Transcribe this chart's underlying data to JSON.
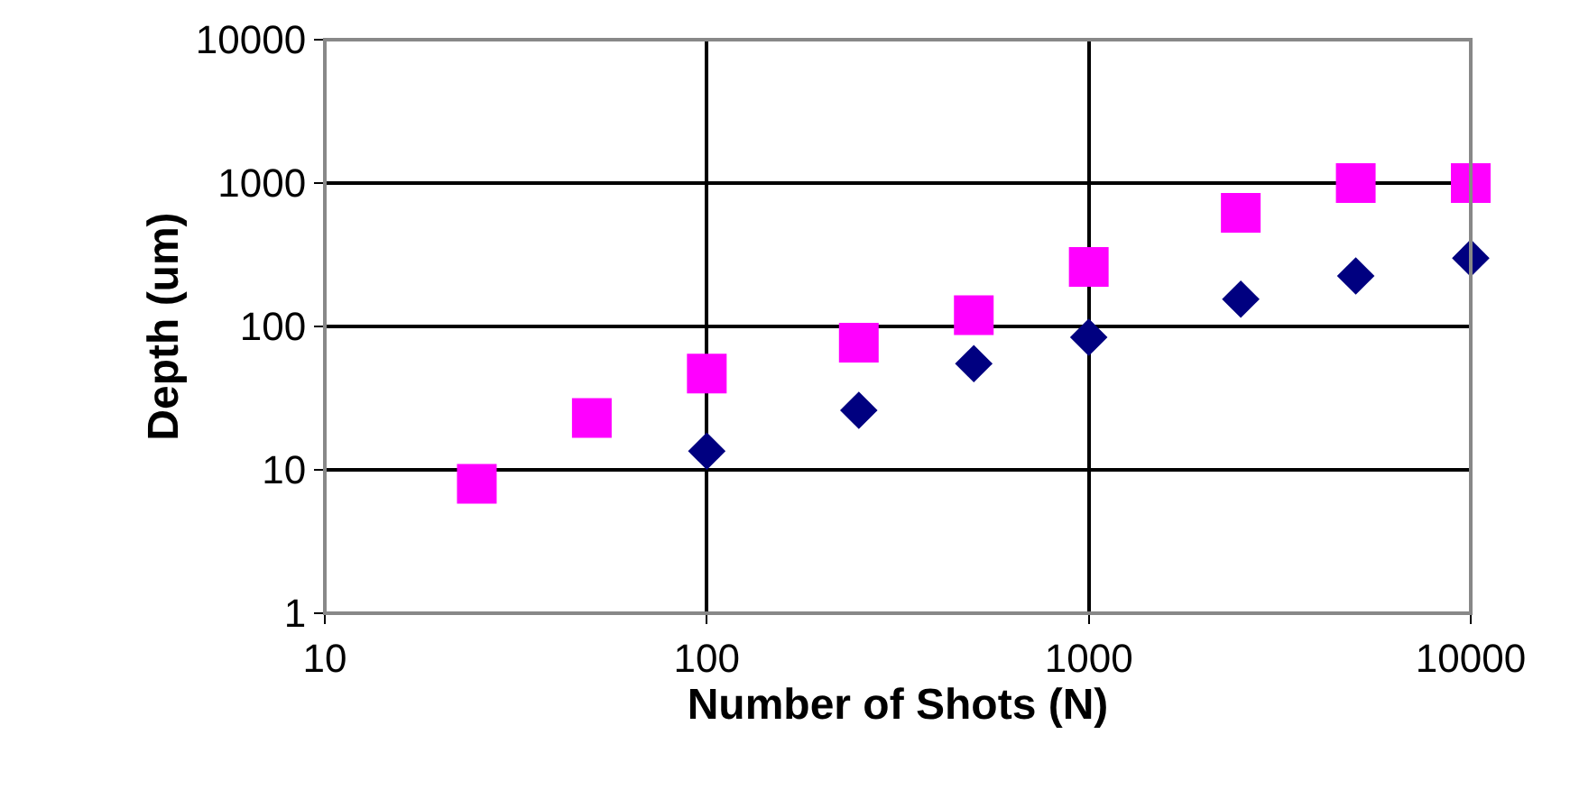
{
  "chart_data": {
    "type": "scatter",
    "xlabel": "Number of Shots (N)",
    "ylabel": "Depth (um)",
    "log": "xy",
    "grid": true,
    "xlim": [
      10,
      10000
    ],
    "xticks": [
      10,
      100,
      1000,
      10000
    ],
    "ylim": [
      1,
      10000
    ],
    "yticks": [
      1,
      10,
      100,
      1000,
      10000
    ],
    "series": [
      {
        "color": "#ff00ff",
        "marker": "square",
        "x": [
          25,
          50,
          100,
          250,
          500,
          1000,
          2500,
          5000,
          10000
        ],
        "values": [
          8,
          23,
          47,
          77,
          120,
          260,
          620,
          1000,
          1000
        ]
      },
      {
        "color": "#000080",
        "marker": "diamond",
        "x": [
          100,
          250,
          500,
          1000,
          2500,
          5000,
          10000
        ],
        "values": [
          13.5,
          26,
          55,
          84,
          155,
          225,
          300
        ]
      }
    ]
  }
}
